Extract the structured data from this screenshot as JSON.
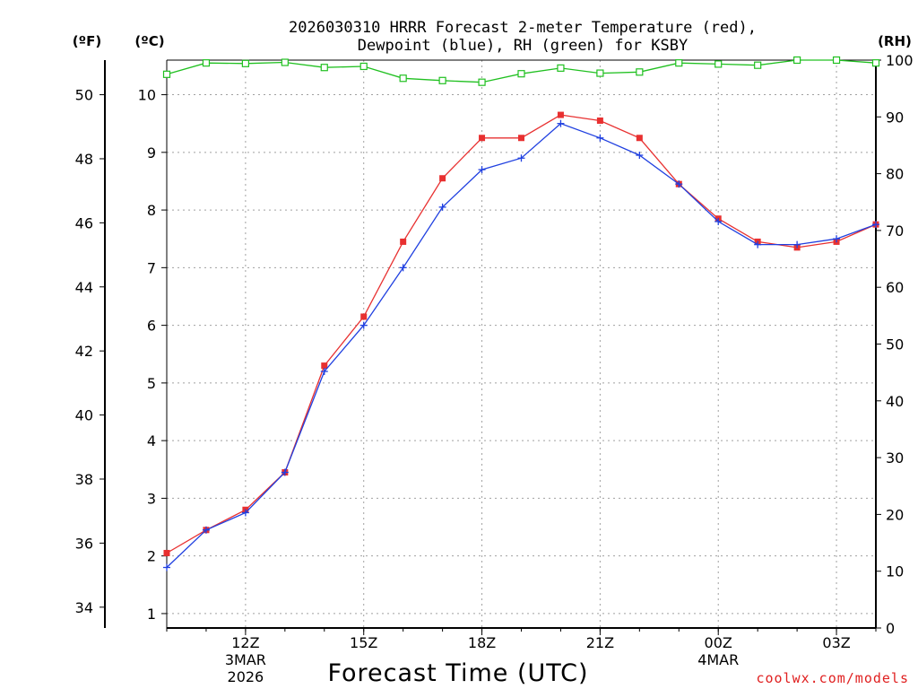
{
  "chart_data": {
    "type": "line",
    "title_line1": "2026030310 HRRR Forecast 2-meter Temperature (red),",
    "title_line2": "Dewpoint (blue), RH (green) for KSBY",
    "xlabel": "Forecast Time (UTC)",
    "credit": "coolwx.com/models",
    "units": {
      "fahrenheit": "(ºF)",
      "celsius": "(ºC)",
      "rh": "(RH)"
    },
    "x_hours": [
      10,
      11,
      12,
      13,
      14,
      15,
      16,
      17,
      18,
      19,
      20,
      21,
      22,
      23,
      24,
      25,
      26,
      27,
      28
    ],
    "xlim": [
      10,
      28
    ],
    "x_ticks": [
      {
        "hour": 12,
        "label": "12Z",
        "date1": "3MAR",
        "date2": "2026"
      },
      {
        "hour": 15,
        "label": "15Z"
      },
      {
        "hour": 18,
        "label": "18Z"
      },
      {
        "hour": 21,
        "label": "21Z"
      },
      {
        "hour": 24,
        "label": "00Z",
        "date1": "4MAR"
      },
      {
        "hour": 27,
        "label": "03Z"
      }
    ],
    "celsius_axis": {
      "ylim": [
        0.75,
        10.6
      ],
      "ticks": [
        1,
        2,
        3,
        4,
        5,
        6,
        7,
        8,
        9,
        10
      ]
    },
    "fahrenheit_axis": {
      "ticks": [
        34,
        36,
        38,
        40,
        42,
        44,
        46,
        48,
        50
      ]
    },
    "rh_axis": {
      "ylim": [
        0,
        100
      ],
      "ticks": [
        0,
        10,
        20,
        30,
        40,
        50,
        60,
        70,
        80,
        90,
        100
      ]
    },
    "series": [
      {
        "name": "Temperature",
        "axis": "celsius",
        "color": "#e83030",
        "marker": "filled-square",
        "values": [
          2.05,
          2.45,
          2.8,
          3.45,
          5.3,
          6.15,
          7.45,
          8.55,
          9.25,
          9.25,
          9.65,
          9.55,
          9.25,
          8.45,
          7.85,
          7.45,
          7.35,
          7.45,
          7.75
        ]
      },
      {
        "name": "Dewpoint",
        "axis": "celsius",
        "color": "#2040e0",
        "marker": "plus",
        "values": [
          1.8,
          2.45,
          2.75,
          3.45,
          5.2,
          6.0,
          7.0,
          8.05,
          8.7,
          8.9,
          9.5,
          9.25,
          8.95,
          8.45,
          7.8,
          7.4,
          7.4,
          7.5,
          7.75
        ]
      },
      {
        "name": "RH",
        "axis": "rh",
        "color": "#20c020",
        "marker": "open-square",
        "values": [
          97.5,
          99.5,
          99.4,
          99.6,
          98.7,
          98.9,
          96.8,
          96.4,
          96.1,
          97.6,
          98.6,
          97.7,
          97.9,
          99.5,
          99.3,
          99.1,
          100,
          100,
          99.5
        ]
      }
    ]
  }
}
